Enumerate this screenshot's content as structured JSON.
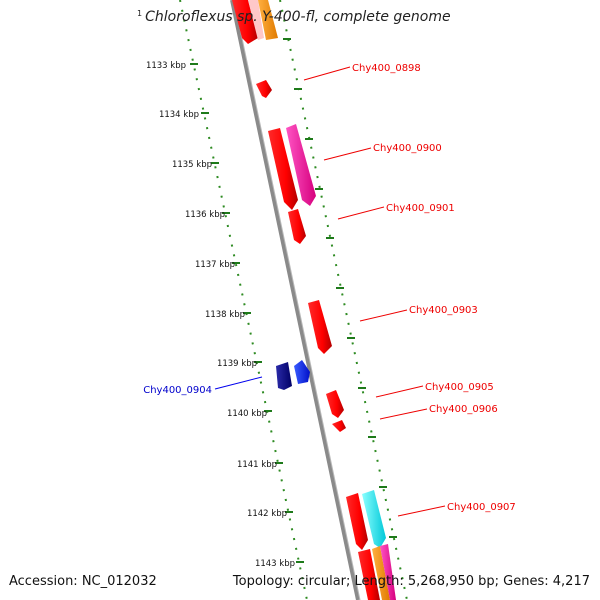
{
  "title": {
    "superscript": "1",
    "text": "Chloroflexus sp. Y-400-fl, complete genome"
  },
  "footer": {
    "accession": "Accession: NC_012032",
    "summary": "Topology: circular; Length: 5,268,950 bp; Genes: 4,217"
  },
  "colors": {
    "backbone": "#8a8a8a",
    "tick": "#2e8b22",
    "forward_gene": "#ff0000",
    "reverse_gene": "#0000ee",
    "highlight_magenta": "#ff1aa8",
    "highlight_cyan": "#00ffff",
    "highlight_orange": "#ff9900"
  },
  "ruler_labels": [
    "1133 kbp",
    "1134 kbp",
    "1135 kbp",
    "1136 kbp",
    "1137 kbp",
    "1138 kbp",
    "1139 kbp",
    "1140 kbp",
    "1141 kbp",
    "1142 kbp",
    "1143 kbp"
  ],
  "gene_labels": [
    {
      "text": "Chy400_0898",
      "strand": "forward"
    },
    {
      "text": "Chy400_0900",
      "strand": "forward"
    },
    {
      "text": "Chy400_0901",
      "strand": "forward"
    },
    {
      "text": "Chy400_0903",
      "strand": "forward"
    },
    {
      "text": "Chy400_0905",
      "strand": "forward"
    },
    {
      "text": "Chy400_0906",
      "strand": "forward"
    },
    {
      "text": "Chy400_0907",
      "strand": "forward"
    },
    {
      "text": "Chy400_0904",
      "strand": "reverse"
    }
  ]
}
